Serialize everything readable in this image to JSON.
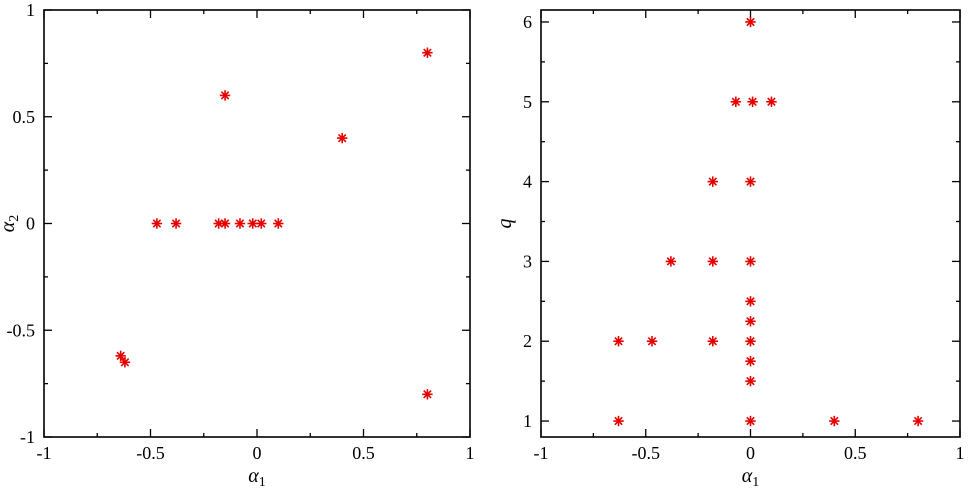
{
  "figure": {
    "background": "#ffffff",
    "frame_color": "#000000"
  },
  "chart_data": [
    {
      "type": "scatter",
      "title": "",
      "xlabel": {
        "main": "α",
        "sub": "1",
        "italic": true
      },
      "ylabel": {
        "main": "α",
        "sub": "2",
        "italic": true
      },
      "xlim": [
        -1,
        1
      ],
      "ylim": [
        -1,
        1
      ],
      "xticks": [
        -1,
        -0.5,
        0,
        0.5,
        1
      ],
      "xtick_labels": [
        "-1",
        "-0.5",
        "0",
        "0.5",
        "1"
      ],
      "yticks": [
        -1,
        -0.5,
        0,
        0.5,
        1
      ],
      "ytick_labels": [
        "-1",
        "-0.5",
        "0",
        "0.5",
        "1"
      ],
      "x_minor_step": 0.25,
      "y_minor_step": 0.25,
      "grid": false,
      "legend": null,
      "marker": "star-8",
      "marker_color": "#e60000",
      "marker_size": 5.2,
      "points": [
        [
          -0.64,
          -0.62
        ],
        [
          -0.62,
          -0.65
        ],
        [
          -0.47,
          0
        ],
        [
          -0.38,
          0
        ],
        [
          -0.18,
          0
        ],
        [
          -0.15,
          0
        ],
        [
          -0.08,
          0
        ],
        [
          -0.02,
          0
        ],
        [
          0.02,
          0
        ],
        [
          0.1,
          0
        ],
        [
          -0.15,
          0.6
        ],
        [
          0.4,
          0.4
        ],
        [
          0.8,
          0.8
        ],
        [
          0.8,
          -0.8
        ]
      ]
    },
    {
      "type": "scatter",
      "title": "",
      "xlabel": {
        "main": "α",
        "sub": "1",
        "italic": true
      },
      "ylabel": {
        "main": "q",
        "sub": "",
        "italic": true
      },
      "xlim": [
        -1,
        1
      ],
      "ylim": [
        0.8,
        6.15
      ],
      "xticks": [
        -1,
        -0.5,
        0,
        0.5,
        1
      ],
      "xtick_labels": [
        "-1",
        "-0.5",
        "0",
        "0.5",
        "1"
      ],
      "yticks": [
        1,
        2,
        3,
        4,
        5,
        6
      ],
      "ytick_labels": [
        "1",
        "2",
        "3",
        "4",
        "5",
        "6"
      ],
      "x_minor_step": 0.25,
      "y_minor_step": 0.5,
      "grid": false,
      "legend": null,
      "marker": "star-8",
      "marker_color": "#e60000",
      "marker_size": 5.2,
      "points": [
        [
          -0.63,
          1
        ],
        [
          0,
          1
        ],
        [
          0.4,
          1
        ],
        [
          0.8,
          1
        ],
        [
          0,
          1.5
        ],
        [
          0,
          1.75
        ],
        [
          -0.63,
          2
        ],
        [
          -0.47,
          2
        ],
        [
          -0.18,
          2
        ],
        [
          0,
          2
        ],
        [
          0,
          2.25
        ],
        [
          0,
          2.5
        ],
        [
          -0.38,
          3
        ],
        [
          -0.18,
          3
        ],
        [
          0,
          3
        ],
        [
          -0.18,
          4
        ],
        [
          0,
          4
        ],
        [
          -0.07,
          5
        ],
        [
          0.01,
          5
        ],
        [
          0.1,
          5
        ],
        [
          0,
          6
        ]
      ]
    }
  ]
}
